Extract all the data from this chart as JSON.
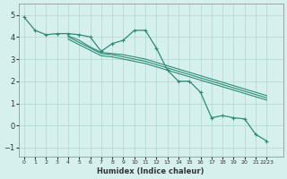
{
  "xlabel": "Humidex (Indice chaleur)",
  "ylabel": "",
  "x_values": [
    0,
    1,
    2,
    3,
    4,
    5,
    6,
    7,
    8,
    9,
    10,
    11,
    12,
    13,
    14,
    15,
    16,
    17,
    18,
    19,
    20,
    21,
    22,
    23
  ],
  "line1_y": [
    4.9,
    4.3,
    4.1,
    4.15,
    4.15,
    4.1,
    4.0,
    3.35,
    3.7,
    3.85,
    4.3,
    4.3,
    3.5,
    2.5,
    2.0,
    2.0,
    1.5,
    0.35,
    0.45,
    0.35,
    0.3,
    -0.4,
    -0.7,
    null
  ],
  "line2_y": [
    null,
    null,
    null,
    null,
    4.05,
    3.85,
    3.55,
    3.3,
    3.25,
    3.2,
    3.1,
    3.0,
    2.85,
    2.7,
    2.55,
    2.4,
    2.25,
    2.1,
    1.95,
    1.8,
    1.65,
    1.5,
    1.35,
    null
  ],
  "line3_y": [
    null,
    null,
    null,
    null,
    4.0,
    3.75,
    3.5,
    3.25,
    3.2,
    3.1,
    3.0,
    2.9,
    2.75,
    2.6,
    2.45,
    2.3,
    2.15,
    2.0,
    1.85,
    1.7,
    1.55,
    1.4,
    1.25,
    null
  ],
  "line4_y": [
    null,
    null,
    null,
    null,
    3.9,
    3.65,
    3.4,
    3.15,
    3.1,
    3.0,
    2.9,
    2.8,
    2.65,
    2.5,
    2.35,
    2.2,
    2.05,
    1.9,
    1.75,
    1.6,
    1.45,
    1.3,
    1.15,
    null
  ],
  "line_color": "#2e8b77",
  "bg_color": "#d6f0ed",
  "grid_color": "#b0d8d0",
  "ylim": [
    -1.4,
    5.5
  ],
  "xlim": [
    -0.5,
    23.5
  ],
  "yticks": [
    -1,
    0,
    1,
    2,
    3,
    4,
    5
  ],
  "xtick_positions": [
    0,
    1,
    2,
    3,
    4,
    5,
    6,
    7,
    8,
    9,
    10,
    11,
    12,
    13,
    14,
    15,
    16,
    17,
    18,
    19,
    20,
    21,
    22
  ],
  "xtick_labels": [
    "0",
    "1",
    "2",
    "3",
    "4",
    "5",
    "6",
    "7",
    "8",
    "9",
    "10",
    "11",
    "12",
    "13",
    "14",
    "15",
    "16",
    "17",
    "18",
    "19",
    "20",
    "21",
    "2223"
  ],
  "marker": "+"
}
